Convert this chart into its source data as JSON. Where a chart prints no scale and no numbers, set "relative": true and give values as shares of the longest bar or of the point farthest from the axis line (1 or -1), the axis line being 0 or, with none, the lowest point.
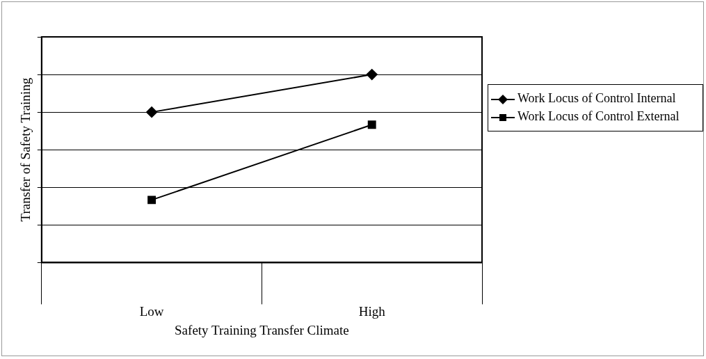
{
  "chart_data": {
    "type": "line",
    "relative": true,
    "xlabel": "Safety Training Transfer Climate",
    "ylabel": "Transfer of Safety Training",
    "categories": [
      "Low",
      "High"
    ],
    "series": [
      {
        "name": "Work Locus of Control Internal",
        "color": "#000000",
        "marker": "diamond",
        "values": [
          0.8,
          1
        ]
      },
      {
        "name": "Work Locus of Control External",
        "color": "#000000",
        "marker": "square",
        "values": [
          0.333,
          0.733
        ]
      }
    ],
    "grid": "y",
    "legend": "right",
    "line_style": "solid"
  }
}
